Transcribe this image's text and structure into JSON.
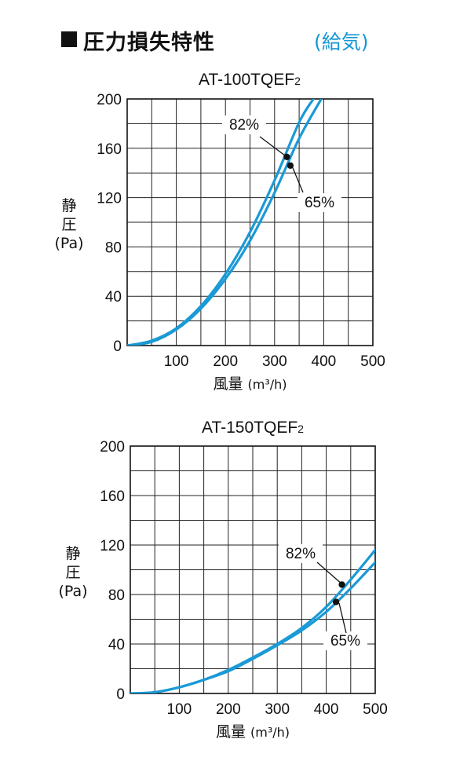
{
  "header": {
    "title": "圧力損失特性",
    "note": "(給気)"
  },
  "chart_data": [
    {
      "type": "line",
      "title": "AT-100TQEF",
      "title_sub": "2",
      "xlabel_main": "風量",
      "xlabel_unit": "(m³/h)",
      "ylabel_lines": [
        "静",
        "圧",
        "(Pa)"
      ],
      "xlim": [
        0,
        500
      ],
      "ylim": [
        0,
        200
      ],
      "x_ticks": [
        100,
        200,
        300,
        400,
        500
      ],
      "y_ticks": [
        0,
        40,
        80,
        120,
        160,
        200
      ],
      "grid": true,
      "series": [
        {
          "name": "82%",
          "x": [
            0,
            50,
            100,
            150,
            200,
            250,
            300,
            350,
            379
          ],
          "y": [
            0,
            4,
            14,
            32,
            58,
            92,
            134,
            181,
            200
          ],
          "marker": [
            325,
            153
          ]
        },
        {
          "name": "65%",
          "x": [
            0,
            50,
            100,
            150,
            200,
            250,
            300,
            350,
            395
          ],
          "y": [
            0,
            3,
            13,
            30,
            54,
            85,
            124,
            168,
            200
          ],
          "marker": [
            332,
            146
          ]
        }
      ],
      "color": "#1a9ad6"
    },
    {
      "type": "line",
      "title": "AT-150TQEF",
      "title_sub": "2",
      "xlabel_main": "風量",
      "xlabel_unit": "(m³/h)",
      "ylabel_lines": [
        "静",
        "圧",
        "(Pa)"
      ],
      "xlim": [
        0,
        500
      ],
      "ylim": [
        0,
        200
      ],
      "x_ticks": [
        100,
        200,
        300,
        400,
        500
      ],
      "y_ticks": [
        0,
        40,
        80,
        120,
        160,
        200
      ],
      "grid": true,
      "series": [
        {
          "name": "82%",
          "x": [
            0,
            50,
            100,
            150,
            200,
            250,
            300,
            350,
            400,
            450,
            500
          ],
          "y": [
            0,
            1,
            5,
            11,
            19,
            29,
            40,
            53,
            70,
            92,
            116
          ],
          "marker": [
            432,
            88
          ]
        },
        {
          "name": "65%",
          "x": [
            0,
            50,
            100,
            150,
            200,
            250,
            300,
            350,
            400,
            450,
            500
          ],
          "y": [
            0,
            1,
            5,
            11,
            18,
            28,
            39,
            51,
            66,
            85,
            106
          ],
          "marker": [
            420,
            74
          ]
        }
      ],
      "color": "#1a9ad6"
    }
  ]
}
